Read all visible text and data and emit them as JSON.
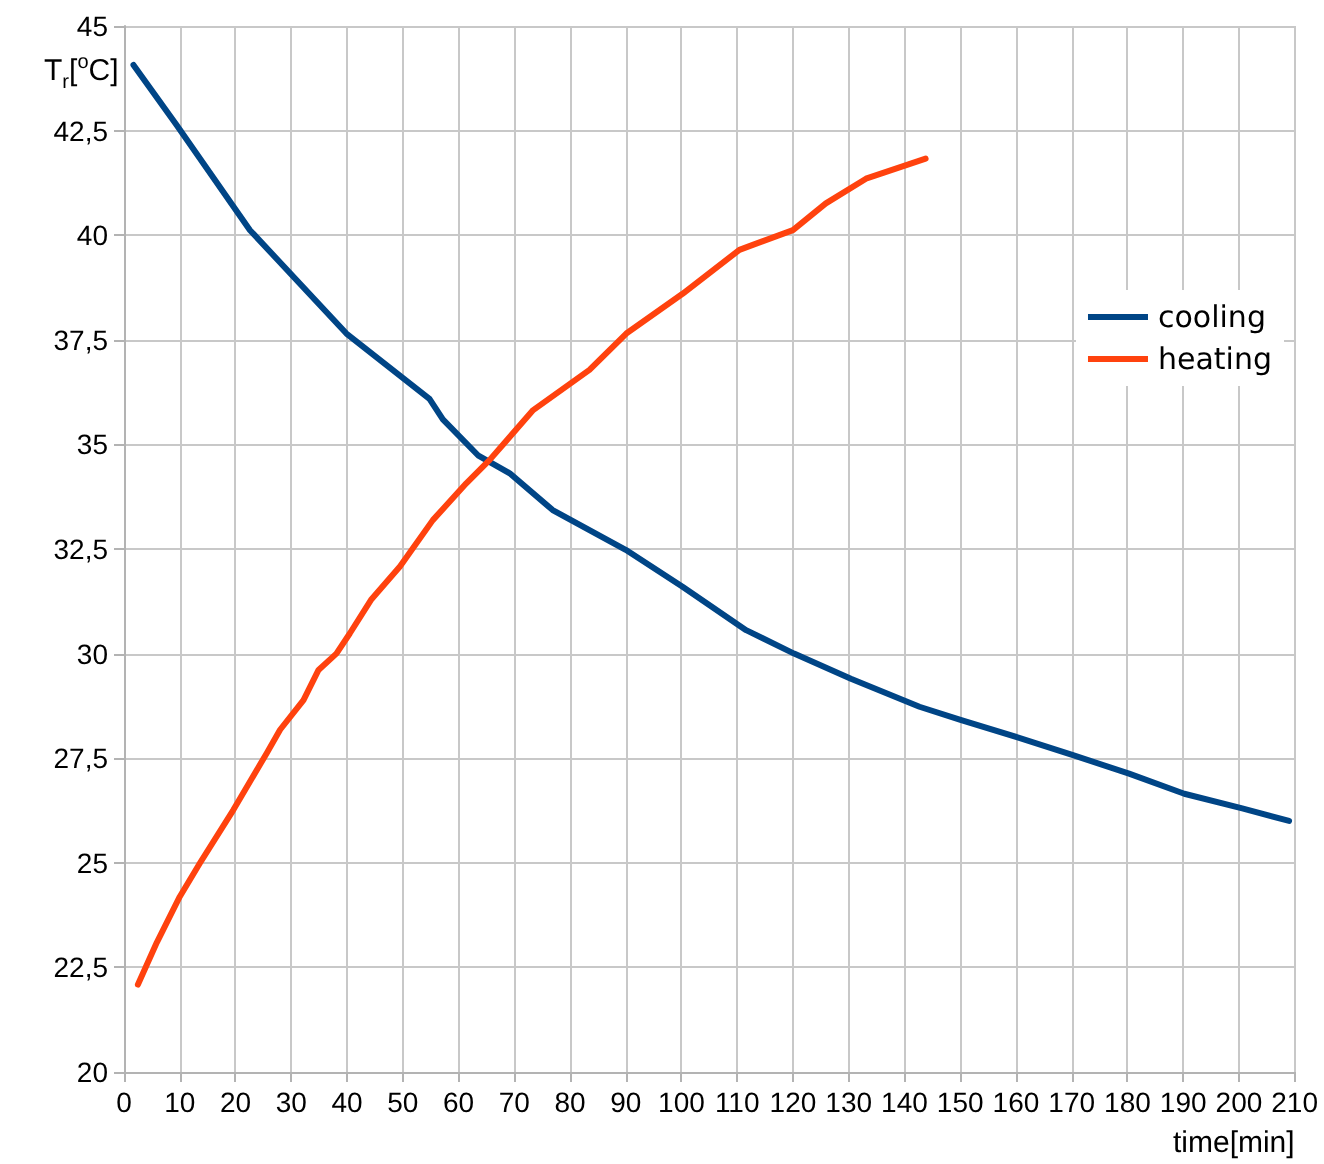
{
  "chart_data": {
    "type": "line",
    "xlabel": "time[min]",
    "ylabel": "T$_{r}$[$^{o}$C]",
    "xlim": [
      0,
      210
    ],
    "xticks": [
      0,
      10,
      20,
      30,
      40,
      50,
      60,
      70,
      80,
      90,
      100,
      110,
      120,
      130,
      140,
      150,
      160,
      170,
      180,
      190,
      200,
      210
    ],
    "ylim": [
      20,
      45
    ],
    "yticks": [
      20,
      {
        "value": 22.5,
        "label": "22,5"
      },
      25,
      {
        "value": 27.5,
        "label": "27,5"
      },
      30,
      {
        "value": 32.5,
        "label": "32,5"
      },
      35,
      {
        "value": 37.5,
        "label": "37,5"
      },
      40,
      {
        "value": 42.5,
        "label": "42,5"
      },
      45
    ],
    "grid": true,
    "legend": "right",
    "marker": "none",
    "line_style": "solid",
    "series": [
      {
        "name": "cooling",
        "color": "#004586",
        "x": [
          1.7,
          9.4,
          22.6,
          39.9,
          54.8,
          57.2,
          63.5,
          69.2,
          76.9,
          90,
          100.2,
          111.6,
          120.2,
          130.4,
          142.7,
          150.2,
          160.3,
          170.1,
          180.3,
          190.2,
          200.6,
          209
        ],
        "values": [
          44.07,
          42.64,
          40.12,
          37.65,
          36.09,
          35.6,
          34.74,
          34.31,
          33.43,
          32.48,
          31.6,
          30.56,
          30.0,
          29.4,
          28.73,
          28.41,
          28.0,
          27.58,
          27.13,
          26.65,
          26.3,
          26.0
        ]
      },
      {
        "name": "heating",
        "color": "#ff420e",
        "x": [
          2.5,
          5.9,
          10,
          13.6,
          19.6,
          25.6,
          28,
          32.2,
          34.9,
          38.1,
          40.5,
          44.4,
          49.5,
          55.4,
          61.4,
          65.6,
          73.4,
          79.3,
          83.5,
          90.1,
          100.2,
          110.4,
          113.4,
          120,
          125.9,
          133.1,
          143.8
        ],
        "values": [
          22.09,
          23.1,
          24.19,
          24.99,
          26.26,
          27.62,
          28.18,
          28.89,
          29.61,
          30.0,
          30.48,
          31.3,
          32.08,
          33.19,
          34.07,
          34.63,
          35.82,
          36.38,
          36.78,
          37.65,
          38.6,
          39.65,
          39.8,
          40.12,
          40.76,
          41.35,
          41.83
        ]
      }
    ]
  }
}
